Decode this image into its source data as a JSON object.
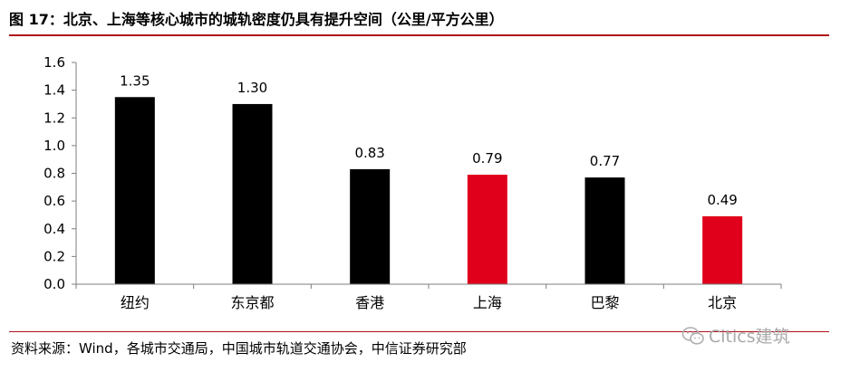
{
  "header": {
    "title": "图 17：北京、上海等核心城市的城轨密度仍具有提升空间（公里/平方公里）"
  },
  "footer": {
    "source": "资料来源：Wind，各城市交通局，中国城市轨道交通协会，中信证券研究部",
    "watermark": "Citics建筑"
  },
  "colors": {
    "accent": "#b0101a",
    "bar_default": "#000000",
    "bar_highlight": "#e0001b"
  },
  "chart_data": {
    "type": "bar",
    "title": "图 17：北京、上海等核心城市的城轨密度仍具有提升空间（公里/平方公里）",
    "xlabel": "",
    "ylabel": "",
    "categories": [
      "纽约",
      "东京都",
      "香港",
      "上海",
      "巴黎",
      "北京"
    ],
    "values": [
      1.35,
      1.3,
      0.83,
      0.79,
      0.77,
      0.49
    ],
    "value_labels": [
      "1.35",
      "1.30",
      "0.83",
      "0.79",
      "0.77",
      "0.49"
    ],
    "highlighted": [
      false,
      false,
      false,
      true,
      false,
      true
    ],
    "ylim": [
      0,
      1.6
    ],
    "yticks": [
      0.0,
      0.2,
      0.4,
      0.6,
      0.8,
      1.0,
      1.2,
      1.4,
      1.6
    ],
    "ytick_labels": [
      "0.0",
      "0.2",
      "0.4",
      "0.6",
      "0.8",
      "1.0",
      "1.2",
      "1.4",
      "1.6"
    ],
    "grid": false,
    "legend": "none"
  }
}
